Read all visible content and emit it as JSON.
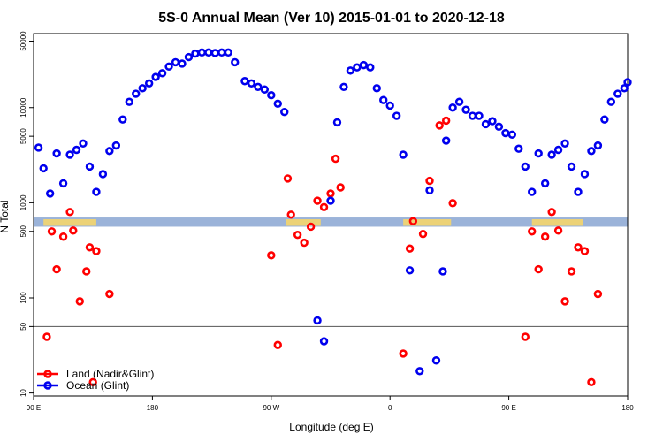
{
  "chart_data": {
    "type": "scatter",
    "title": "5S-0 Annual Mean (Ver 10)   2015-01-01 to 2020-12-18",
    "xlabel": "Longitude (deg E)",
    "ylabel": "N Total",
    "y_scale": "log",
    "xlim": [
      90,
      450
    ],
    "ylim": [
      9.3,
      60000
    ],
    "x_ticks": [
      {
        "value": 90,
        "label": "90 E"
      },
      {
        "value": 162,
        "label": "180"
      },
      {
        "value": 234,
        "label": "90 W"
      },
      {
        "value": 306,
        "label": "0"
      },
      {
        "value": 378,
        "label": "90 E"
      },
      {
        "value": 450,
        "label": "180"
      }
    ],
    "y_ticks": [
      {
        "value": 10,
        "label": "10"
      },
      {
        "value": 50,
        "label": "50"
      },
      {
        "value": 100,
        "label": "100"
      },
      {
        "value": 500,
        "label": "500"
      },
      {
        "value": 1000,
        "label": "1000"
      },
      {
        "value": 5000,
        "label": "5000"
      },
      {
        "value": 10000,
        "label": "10000"
      },
      {
        "value": 50000,
        "label": "50000"
      }
    ],
    "reference_line": 50,
    "land_band": {
      "y_low": 560,
      "y_high": 700
    },
    "legend_position": "bottom-left",
    "series": [
      {
        "name": "Land (Nadir&Glint)",
        "color": "#ff0000",
        "points": [
          [
            98,
            39
          ],
          [
            101,
            500
          ],
          [
            104,
            200
          ],
          [
            108,
            440
          ],
          [
            112,
            800
          ],
          [
            114,
            510
          ],
          [
            118,
            92
          ],
          [
            122,
            190
          ],
          [
            124,
            340
          ],
          [
            128,
            310
          ],
          [
            136,
            110
          ],
          [
            234,
            280
          ],
          [
            238,
            32
          ],
          [
            244,
            1800
          ],
          [
            246,
            750
          ],
          [
            250,
            460
          ],
          [
            254,
            380
          ],
          [
            258,
            560
          ],
          [
            262,
            1050
          ],
          [
            266,
            900
          ],
          [
            270,
            1250
          ],
          [
            273,
            2900
          ],
          [
            276,
            1450
          ],
          [
            314,
            26
          ],
          [
            318,
            330
          ],
          [
            320,
            640
          ],
          [
            326,
            470
          ],
          [
            330,
            1700
          ],
          [
            336,
            6500
          ],
          [
            340,
            7300
          ],
          [
            344,
            990
          ],
          [
            388,
            39
          ],
          [
            392,
            500
          ],
          [
            396,
            200
          ],
          [
            400,
            440
          ],
          [
            404,
            800
          ],
          [
            408,
            510
          ],
          [
            412,
            92
          ],
          [
            416,
            190
          ],
          [
            420,
            340
          ],
          [
            424,
            310
          ],
          [
            428,
            13
          ],
          [
            432,
            110
          ],
          [
            126,
            13
          ]
        ]
      },
      {
        "name": "Ocean (Glint)",
        "color": "#0000ee",
        "points": [
          [
            93,
            3800
          ],
          [
            96,
            2300
          ],
          [
            100,
            1250
          ],
          [
            104,
            3300
          ],
          [
            108,
            1600
          ],
          [
            112,
            3200
          ],
          [
            116,
            3600
          ],
          [
            120,
            4200
          ],
          [
            124,
            2400
          ],
          [
            128,
            1300
          ],
          [
            132,
            2000
          ],
          [
            136,
            3500
          ],
          [
            140,
            4000
          ],
          [
            144,
            7500
          ],
          [
            148,
            11500
          ],
          [
            152,
            14000
          ],
          [
            156,
            16000
          ],
          [
            160,
            18000
          ],
          [
            164,
            21000
          ],
          [
            168,
            23000
          ],
          [
            172,
            27000
          ],
          [
            176,
            30000
          ],
          [
            180,
            29000
          ],
          [
            184,
            34000
          ],
          [
            188,
            37000
          ],
          [
            192,
            38000
          ],
          [
            196,
            38000
          ],
          [
            200,
            37500
          ],
          [
            204,
            38000
          ],
          [
            208,
            38000
          ],
          [
            212,
            30000
          ],
          [
            218,
            19000
          ],
          [
            222,
            18000
          ],
          [
            226,
            16500
          ],
          [
            230,
            15500
          ],
          [
            234,
            13500
          ],
          [
            238,
            11000
          ],
          [
            242,
            9000
          ],
          [
            262,
            58
          ],
          [
            266,
            35
          ],
          [
            270,
            1050
          ],
          [
            274,
            7000
          ],
          [
            278,
            16500
          ],
          [
            282,
            24500
          ],
          [
            286,
            26500
          ],
          [
            290,
            28000
          ],
          [
            294,
            26500
          ],
          [
            298,
            16000
          ],
          [
            302,
            12000
          ],
          [
            306,
            10500
          ],
          [
            310,
            8200
          ],
          [
            314,
            3200
          ],
          [
            318,
            195
          ],
          [
            324,
            17
          ],
          [
            330,
            1350
          ],
          [
            334,
            22
          ],
          [
            338,
            190
          ],
          [
            340,
            4500
          ],
          [
            344,
            10000
          ],
          [
            348,
            11500
          ],
          [
            352,
            9500
          ],
          [
            356,
            8200
          ],
          [
            360,
            8200
          ],
          [
            364,
            6700
          ],
          [
            368,
            7200
          ],
          [
            372,
            6300
          ],
          [
            376,
            5400
          ],
          [
            380,
            5200
          ],
          [
            384,
            3700
          ],
          [
            388,
            2400
          ],
          [
            392,
            1300
          ],
          [
            396,
            3300
          ],
          [
            400,
            1600
          ],
          [
            404,
            3200
          ],
          [
            408,
            3600
          ],
          [
            412,
            4200
          ],
          [
            416,
            2400
          ],
          [
            420,
            1300
          ],
          [
            424,
            2000
          ],
          [
            428,
            3500
          ],
          [
            432,
            4000
          ],
          [
            436,
            7500
          ],
          [
            440,
            11500
          ],
          [
            444,
            14000
          ],
          [
            448,
            16000
          ],
          [
            450,
            18500
          ]
        ]
      }
    ]
  }
}
